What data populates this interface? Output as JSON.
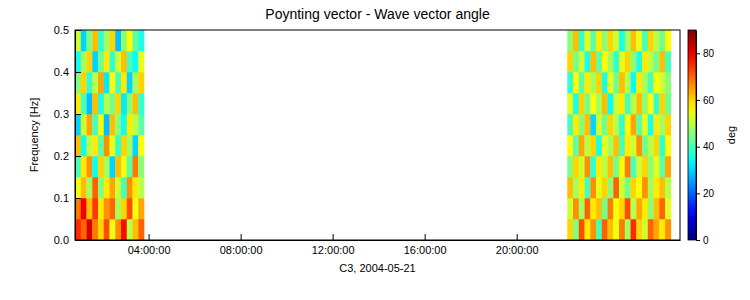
{
  "chart_data": {
    "type": "heatmap",
    "title": "Poynting vector - Wave vector angle",
    "xlabel": "C3, 2004-05-21",
    "ylabel": "Frequency [Hz]",
    "xlim": [
      0.8,
      27.1
    ],
    "xticks": [
      {
        "value": 4,
        "label": "04:00:00"
      },
      {
        "value": 8,
        "label": "08:00:00"
      },
      {
        "value": 12,
        "label": "12:00:00"
      },
      {
        "value": 16,
        "label": "16:00:00"
      },
      {
        "value": 20,
        "label": "20:00:00"
      }
    ],
    "ylim": [
      0,
      0.5
    ],
    "yticks": [
      {
        "value": 0,
        "label": "0.0"
      },
      0.1,
      0.2,
      0.3,
      0.4,
      0.5
    ],
    "x": [
      0.925,
      1.175,
      1.425,
      1.675,
      1.925,
      2.175,
      2.425,
      2.675,
      2.925,
      3.175,
      3.425,
      3.675,
      22.325,
      22.575,
      22.825,
      23.075,
      23.325,
      23.575,
      23.825,
      24.075,
      24.325,
      24.575,
      24.825,
      25.075,
      25.325,
      25.575,
      25.825,
      26.075,
      26.325,
      26.575
    ],
    "y": [
      0.025,
      0.075,
      0.125,
      0.175,
      0.225,
      0.275,
      0.325,
      0.375,
      0.425,
      0.475
    ],
    "cells": [
      [
        75,
        70,
        82,
        68,
        60,
        72,
        55,
        66,
        78,
        50,
        62,
        70,
        60,
        45,
        72,
        58,
        66,
        40,
        70,
        62,
        55,
        68,
        48,
        75,
        60,
        52,
        70,
        64,
        58,
        66
      ],
      [
        68,
        80,
        62,
        74,
        58,
        66,
        70,
        48,
        60,
        72,
        55,
        64,
        52,
        66,
        48,
        70,
        58,
        62,
        44,
        68,
        56,
        60,
        72,
        50,
        64,
        58,
        46,
        62,
        70,
        54
      ],
      [
        55,
        62,
        48,
        70,
        45,
        58,
        64,
        52,
        40,
        66,
        58,
        50,
        62,
        48,
        58,
        40,
        66,
        54,
        60,
        46,
        70,
        52,
        44,
        60,
        56,
        66,
        48,
        58,
        62,
        50
      ],
      [
        40,
        58,
        66,
        35,
        60,
        48,
        30,
        62,
        55,
        42,
        68,
        46,
        45,
        60,
        52,
        66,
        38,
        58,
        50,
        62,
        44,
        56,
        68,
        40,
        52,
        60,
        46,
        54,
        42,
        64
      ],
      [
        62,
        35,
        50,
        58,
        42,
        66,
        55,
        38,
        60,
        48,
        30,
        56,
        56,
        42,
        64,
        50,
        60,
        36,
        54,
        48,
        62,
        40,
        58,
        52,
        66,
        44,
        50,
        60,
        38,
        56
      ],
      [
        30,
        52,
        64,
        40,
        55,
        28,
        62,
        46,
        35,
        58,
        50,
        42,
        40,
        58,
        46,
        62,
        30,
        52,
        44,
        60,
        50,
        38,
        56,
        64,
        42,
        54,
        36,
        58,
        48,
        60
      ],
      [
        58,
        40,
        28,
        62,
        36,
        50,
        44,
        60,
        32,
        46,
        62,
        38,
        54,
        36,
        60,
        44,
        56,
        48,
        62,
        34,
        52,
        58,
        40,
        50,
        62,
        46,
        56,
        38,
        60,
        44
      ],
      [
        45,
        60,
        38,
        50,
        64,
        32,
        56,
        40,
        58,
        30,
        48,
        60,
        38,
        56,
        42,
        58,
        48,
        60,
        36,
        54,
        44,
        62,
        50,
        34,
        58,
        48,
        40,
        56,
        52,
        46
      ],
      [
        35,
        48,
        60,
        30,
        44,
        58,
        38,
        52,
        62,
        40,
        34,
        54,
        60,
        44,
        52,
        36,
        62,
        42,
        56,
        48,
        38,
        54,
        60,
        46,
        36,
        58,
        50,
        44,
        62,
        40
      ],
      [
        52,
        30,
        45,
        62,
        38,
        48,
        60,
        28,
        46,
        56,
        42,
        36,
        46,
        62,
        38,
        54,
        42,
        58,
        46,
        60,
        52,
        36,
        48,
        62,
        54,
        40,
        60,
        50,
        44,
        56
      ]
    ],
    "colorbar": {
      "lim": [
        0,
        90
      ],
      "ticks": [
        0,
        20,
        40,
        60,
        80
      ],
      "label": "deg"
    }
  }
}
